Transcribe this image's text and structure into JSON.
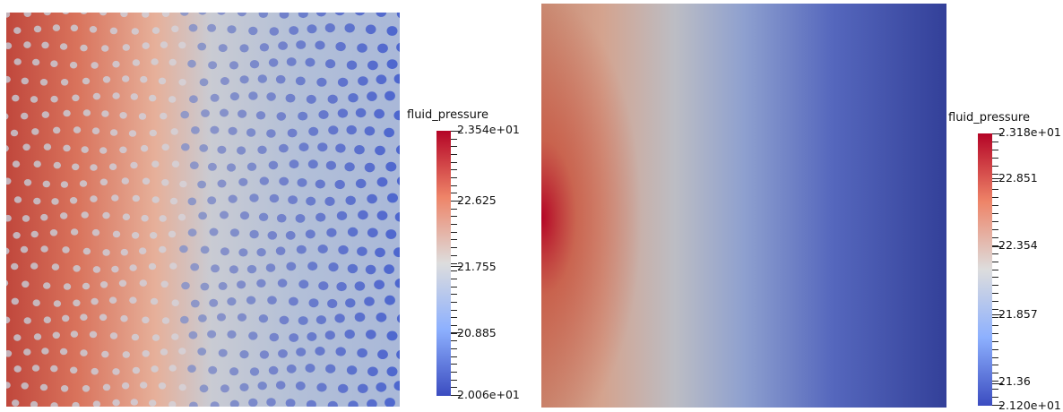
{
  "colormap": {
    "name": "Cool to Warm",
    "low_color": "#3b4cc0",
    "mid_color": "#dddddd",
    "high_color": "#b40426"
  },
  "left_plot": {
    "field": "fluid_pressure",
    "min_label": "2.006e+01",
    "max_label": "2.354e+01",
    "min": 20.06,
    "max": 23.54,
    "ticks": [
      {
        "label": "22.625",
        "value": 22.625
      },
      {
        "label": "21.755",
        "value": 21.755
      },
      {
        "label": "20.885",
        "value": 20.885
      }
    ]
  },
  "right_plot": {
    "field": "fluid_pressure",
    "min_label": "2.120e+01",
    "max_label": "2.318e+01",
    "min": 21.2,
    "max": 23.18,
    "ticks": [
      {
        "label": "22.851",
        "value": 22.851
      },
      {
        "label": "22.354",
        "value": 22.354
      },
      {
        "label": "21.857",
        "value": 21.857
      },
      {
        "label": "21.36",
        "value": 21.36
      }
    ]
  }
}
